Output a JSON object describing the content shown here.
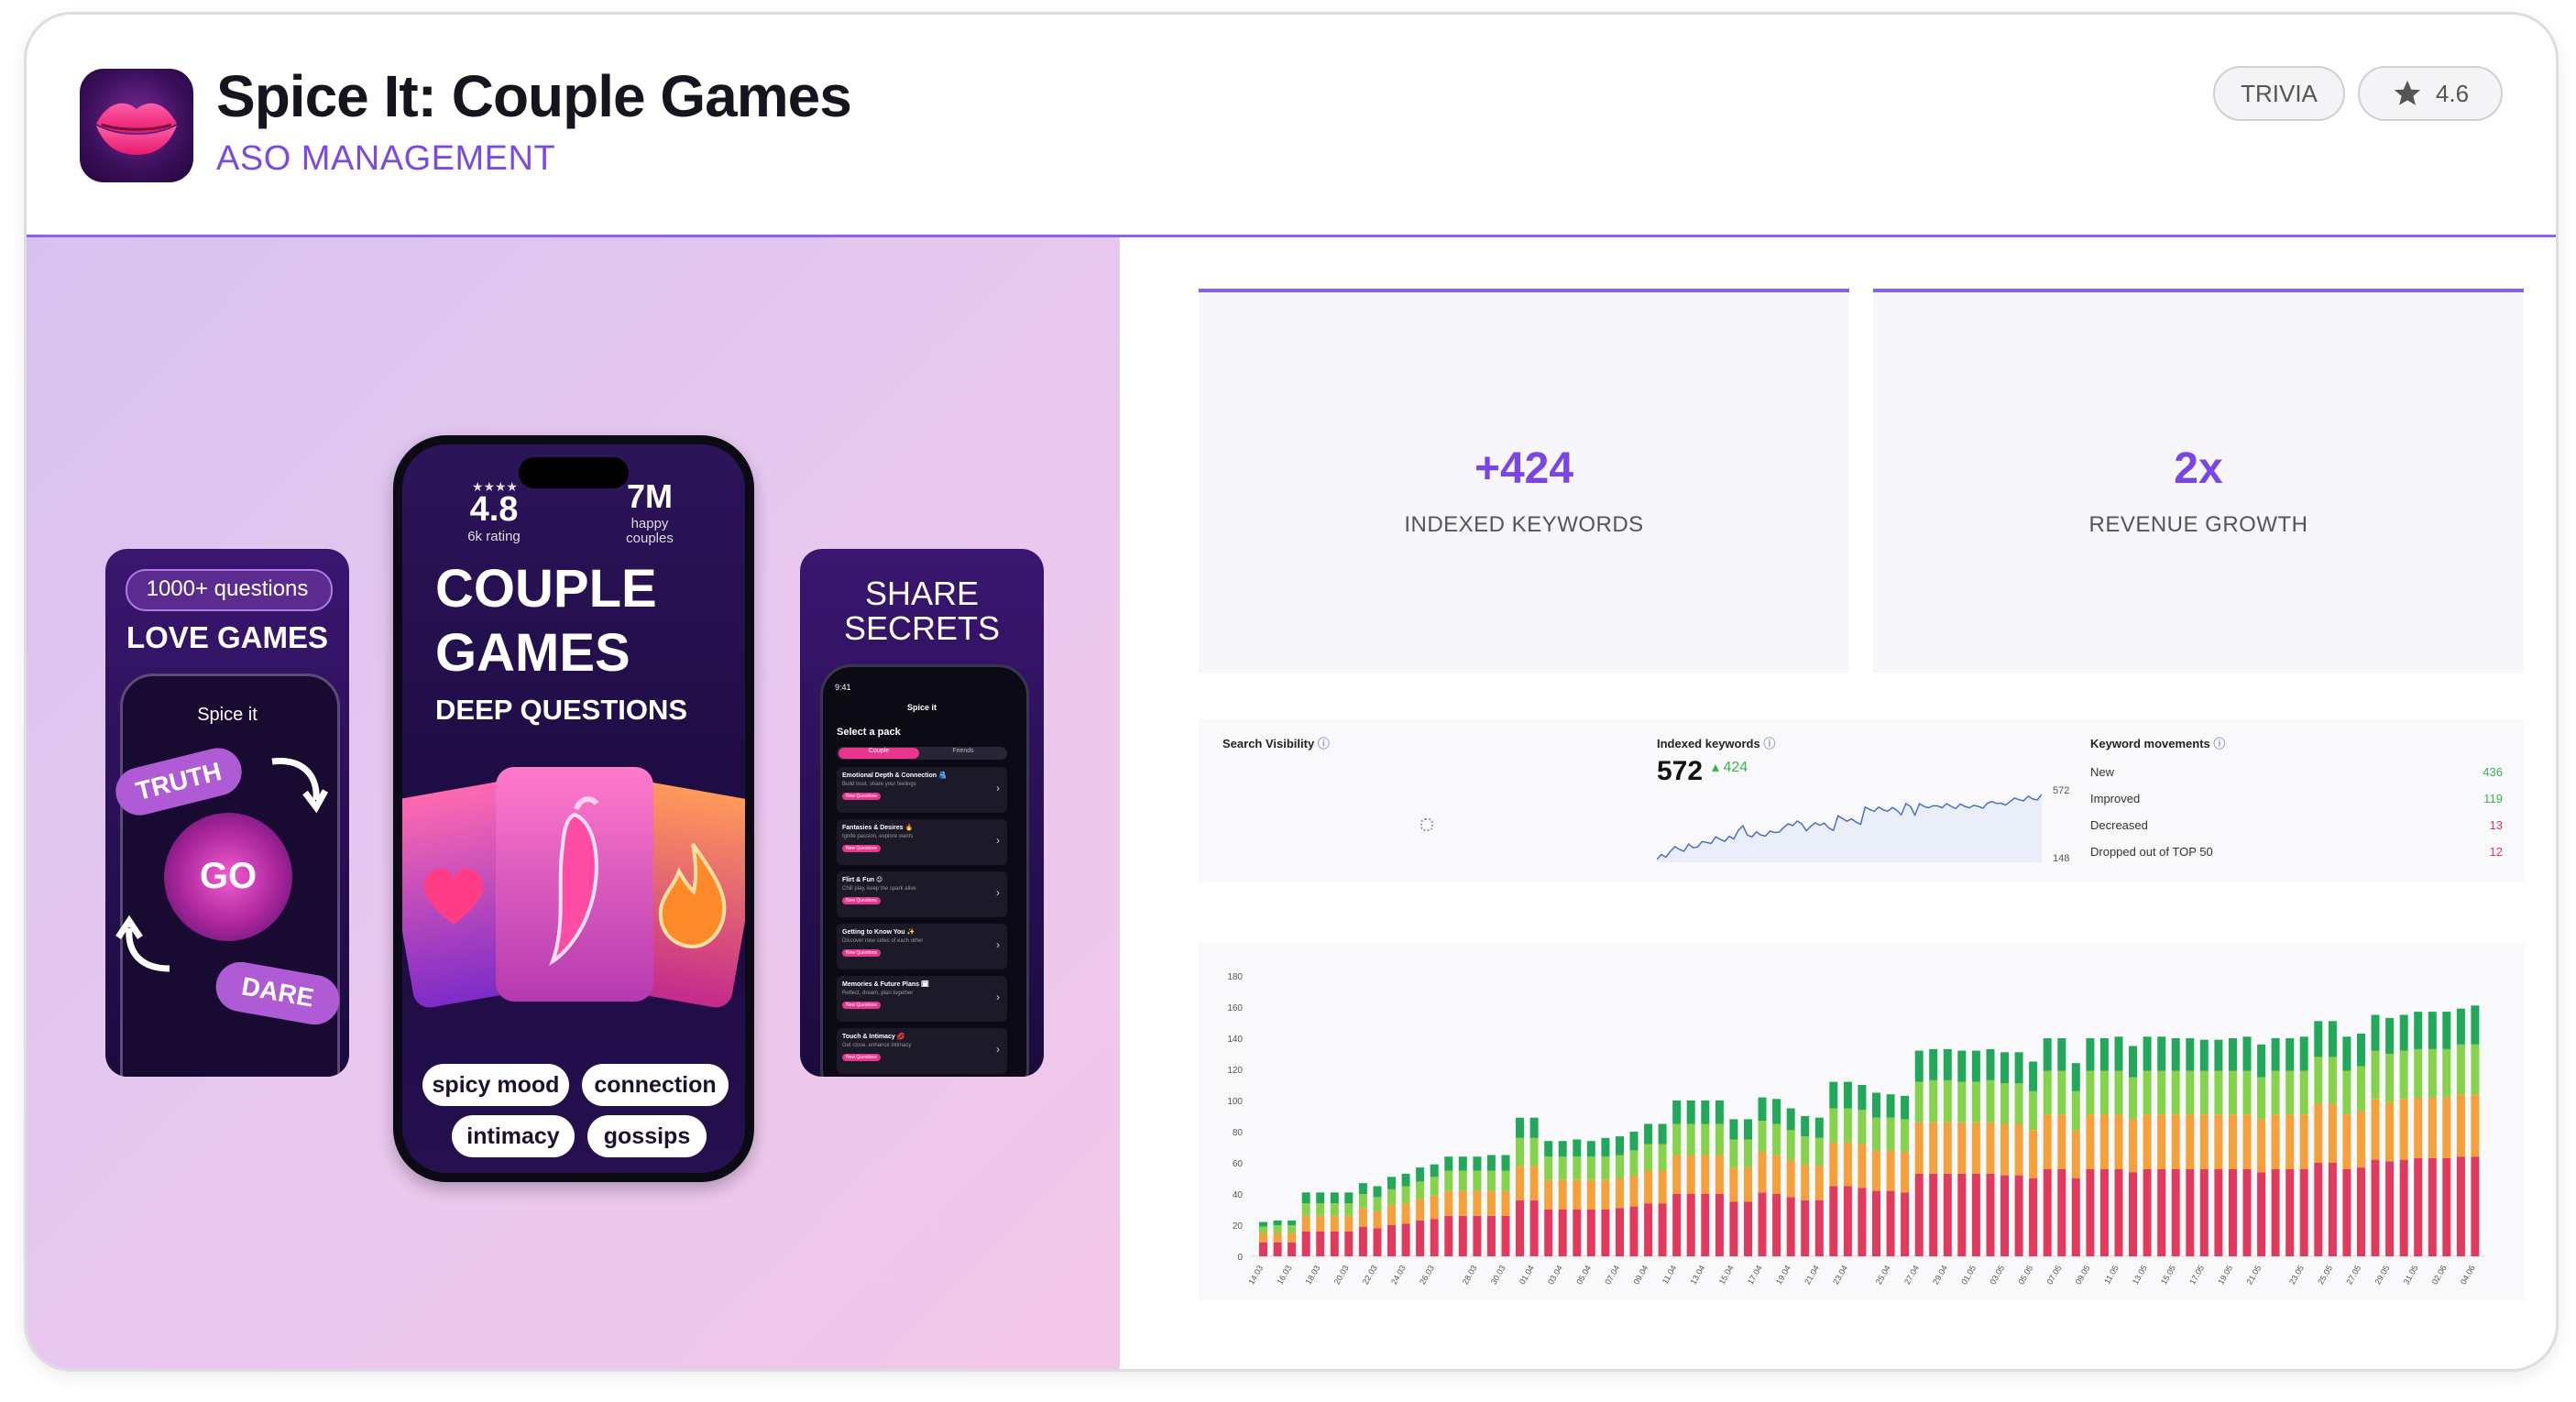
{
  "header": {
    "title": "Spice It: Couple Games",
    "subtitle": "ASO MANAGEMENT",
    "category": "TRIVIA",
    "rating": "4.6",
    "icon": "lips-icon"
  },
  "screens": {
    "left": {
      "badge": "1000+ questions",
      "headline": "LOVE GAMES",
      "app_name": "Spice it",
      "truth": "TRUTH",
      "go": "GO",
      "dare": "DARE"
    },
    "center": {
      "rating_stars": "★★★★",
      "rating": "4.8",
      "rating_note": "6k rating",
      "users": "7M",
      "users_note1": "happy",
      "users_note2": "couples",
      "headline1": "COUPLE",
      "headline2": "GAMES",
      "headline3": "DEEP QUESTIONS",
      "chips": [
        "spicy mood",
        "connection",
        "intimacy",
        "gossips"
      ]
    },
    "right": {
      "headline1": "SHARE",
      "headline2": "SECRETS",
      "time": "9:41",
      "app_name": "Spice it",
      "select_label": "Select a pack",
      "tabs": [
        "Couple",
        "Friends"
      ],
      "packs": [
        {
          "title": "Emotional Depth & Connection 🫂",
          "desc": "Build trust, share your feelings"
        },
        {
          "title": "Fantasies & Desires 🔥",
          "desc": "Ignite passion, explore wants"
        },
        {
          "title": "Flirt & Fun 😉",
          "desc": "Chill play, keep the spark alive"
        },
        {
          "title": "Getting to Know You ✨",
          "desc": "Discover new sides of each other"
        },
        {
          "title": "Memories & Future Plans 🗓",
          "desc": "Reflect, dream, plan together"
        },
        {
          "title": "Touch & Intimacy 💋",
          "desc": "Get close, enhance intimacy"
        }
      ],
      "new_label": "New Questions"
    }
  },
  "stats": [
    {
      "value": "+424",
      "label": "INDEXED KEYWORDS"
    },
    {
      "value": "2x",
      "label": "REVENUE GROWTH"
    }
  ],
  "metrics": {
    "search_visibility_label": "Search Visibility",
    "indexed_label": "Indexed keywords",
    "indexed_value": "572",
    "indexed_delta": "424",
    "spark_max": "572",
    "spark_min": "148",
    "movements_label": "Keyword movements",
    "movements": [
      {
        "label": "New",
        "value": "436",
        "color": "#3bb54a"
      },
      {
        "label": "Improved",
        "value": "119",
        "color": "#3bb54a"
      },
      {
        "label": "Decreased",
        "value": "13",
        "color": "#e0325a"
      },
      {
        "label": "Dropped out of TOP 50",
        "value": "12",
        "color": "#e0325a"
      }
    ]
  },
  "chart_data": {
    "type": "bar",
    "stacked": true,
    "ylim": [
      0,
      180
    ],
    "yticks": [
      0,
      20,
      40,
      60,
      80,
      100,
      120,
      140,
      160,
      180
    ],
    "colors": [
      "#e13a5e",
      "#f5a03a",
      "#86d24a",
      "#22a85a"
    ],
    "x_labels": [
      "14.03",
      "16.03",
      "18.03",
      "20.03",
      "22.03",
      "24.03",
      "26.03",
      "28.03",
      "30.03",
      "01.04",
      "03.04",
      "05.04",
      "07.04",
      "09.04",
      "11.04",
      "13.04",
      "15.04",
      "17.04",
      "19.04",
      "21.04",
      "23.04",
      "25.04",
      "27.04",
      "29.04",
      "01.05",
      "03.05",
      "05.05",
      "07.05",
      "09.05",
      "11.05",
      "13.05",
      "15.05",
      "17.05",
      "19.05",
      "21.05",
      "23.05",
      "25.05",
      "27.05",
      "29.05",
      "31.05",
      "02.06",
      "04.06"
    ],
    "totals": [
      22,
      23,
      23,
      41,
      41,
      41,
      41,
      47,
      45,
      51,
      53,
      57,
      59,
      64,
      64,
      64,
      65,
      65,
      89,
      89,
      74,
      74,
      75,
      74,
      76,
      77,
      80,
      85,
      85,
      100,
      100,
      100,
      100,
      88,
      88,
      102,
      101,
      95,
      90,
      89,
      112,
      112,
      110,
      105,
      104,
      103,
      132,
      133,
      133,
      132,
      132,
      133,
      131,
      131,
      125,
      140,
      140,
      124,
      140,
      140,
      141,
      135,
      141,
      141,
      140,
      140,
      139,
      139,
      140,
      141,
      136,
      140,
      140,
      141,
      151,
      151,
      141,
      143,
      155,
      153,
      155,
      157,
      157,
      157,
      159,
      161
    ],
    "pct": [
      0.4,
      0.25,
      0.2,
      0.15
    ]
  }
}
